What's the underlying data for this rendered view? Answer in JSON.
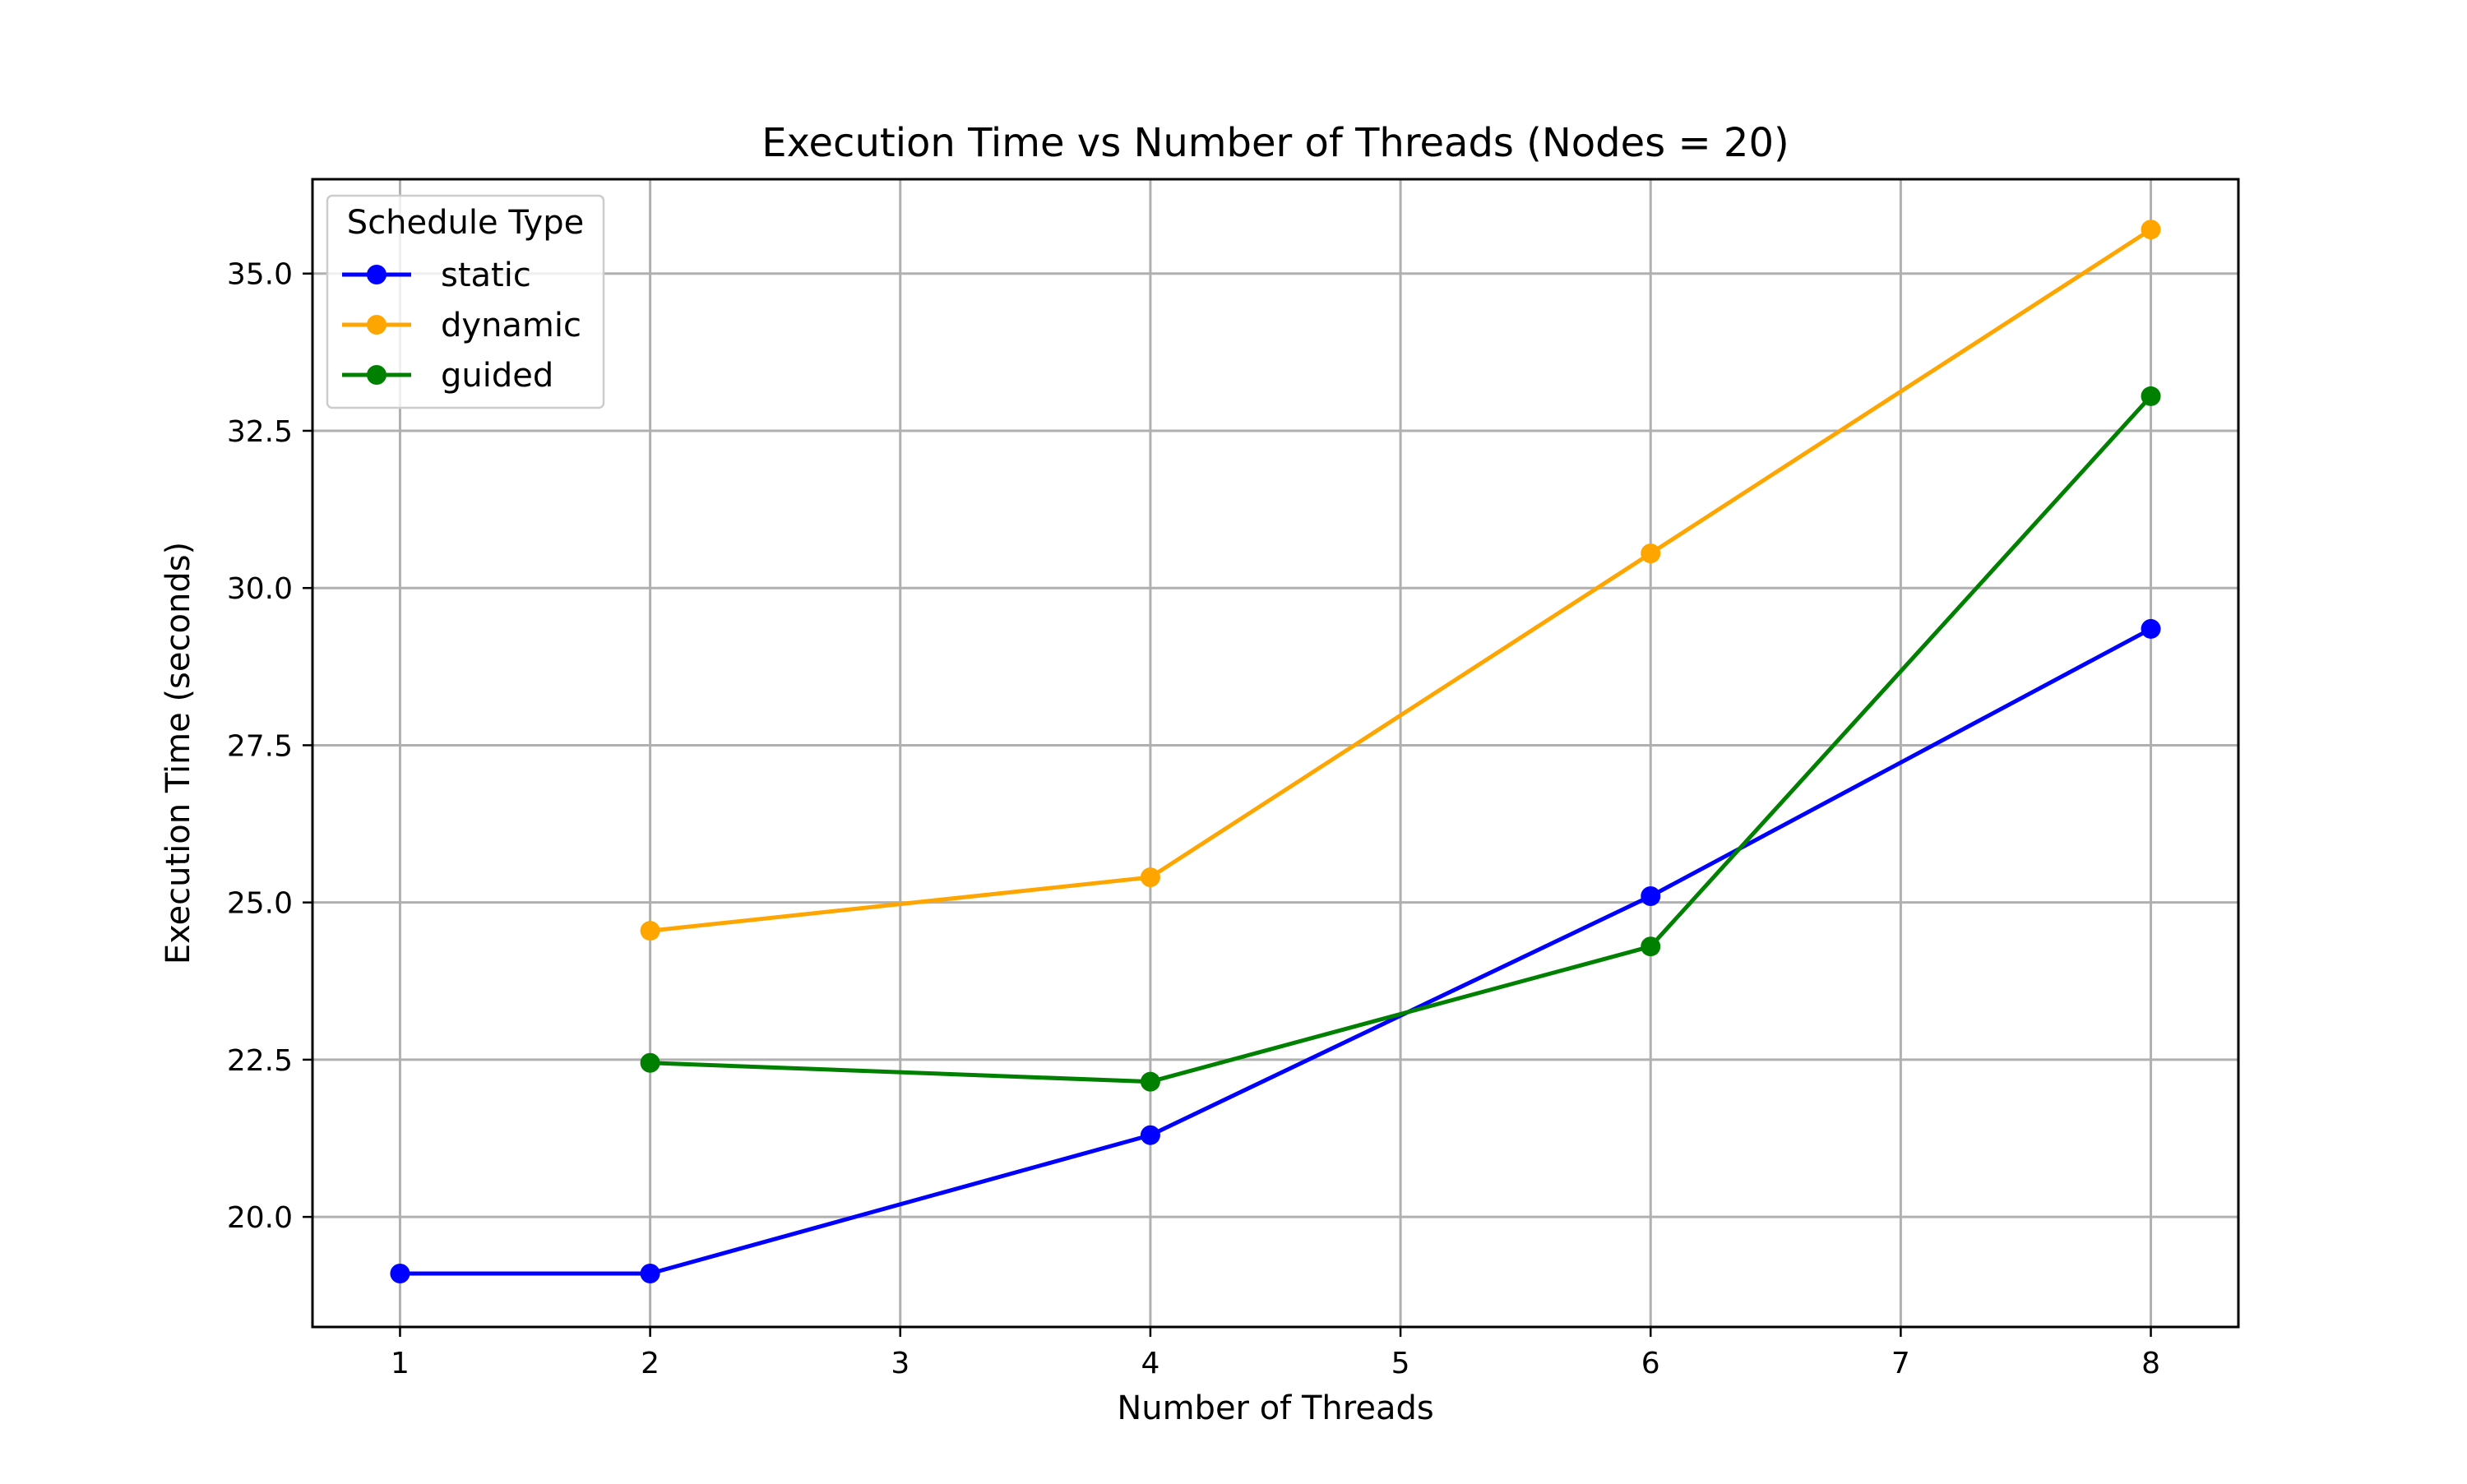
{
  "chart_data": {
    "type": "line",
    "title": "Execution Time vs Number of Threads (Nodes = 20)",
    "xlabel": "Number of Threads",
    "ylabel": "Execution Time (seconds)",
    "xlim": [
      0.65,
      8.35
    ],
    "ylim": [
      18.25,
      36.5
    ],
    "x_ticks": [
      1,
      2,
      3,
      4,
      5,
      6,
      7,
      8
    ],
    "x_tick_labels": [
      "1",
      "2",
      "3",
      "4",
      "5",
      "6",
      "7",
      "8"
    ],
    "y_ticks": [
      20.0,
      22.5,
      25.0,
      27.5,
      30.0,
      32.5,
      35.0
    ],
    "y_tick_labels": [
      "20.0",
      "22.5",
      "25.0",
      "27.5",
      "30.0",
      "32.5",
      "35.0"
    ],
    "grid": true,
    "legend": {
      "title": "Schedule Type",
      "location": "upper-left"
    },
    "series": [
      {
        "name": "static",
        "color": "#0000ff",
        "x": [
          1,
          2,
          4,
          6,
          8
        ],
        "y": [
          19.1,
          19.1,
          21.3,
          25.1,
          29.35
        ]
      },
      {
        "name": "dynamic",
        "color": "#ffa500",
        "x": [
          2,
          4,
          6,
          8
        ],
        "y": [
          24.55,
          25.4,
          30.55,
          35.7
        ]
      },
      {
        "name": "guided",
        "color": "#008000",
        "x": [
          2,
          4,
          6,
          8
        ],
        "y": [
          22.45,
          22.15,
          24.3,
          33.05
        ]
      }
    ]
  }
}
